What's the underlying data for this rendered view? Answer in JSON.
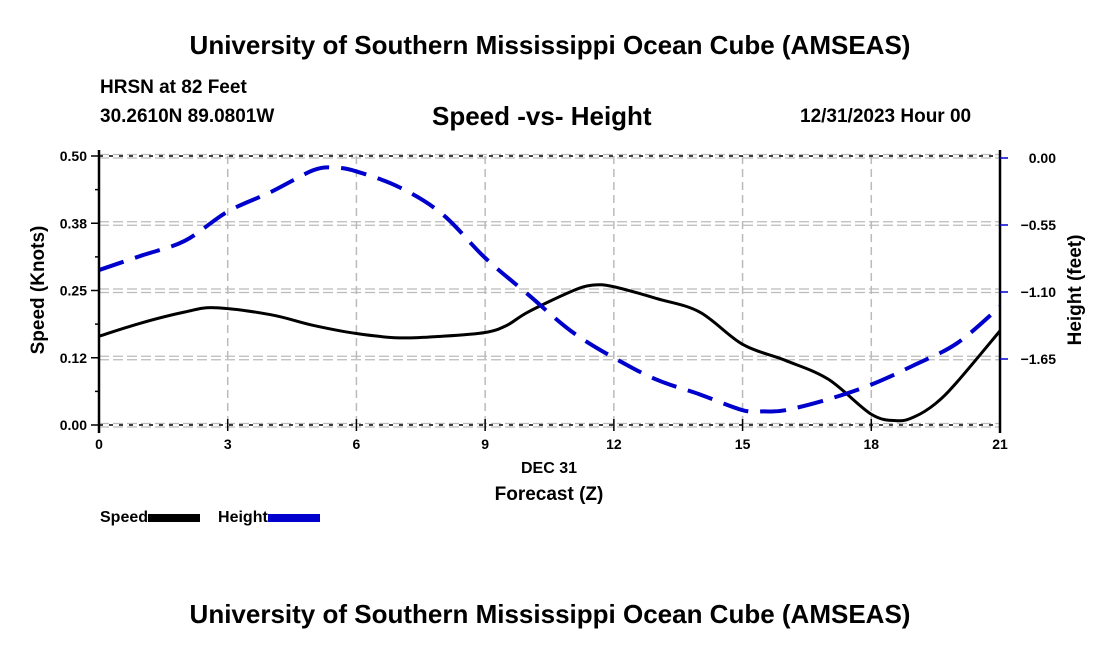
{
  "header": {
    "main_title": "University of Southern Mississippi Ocean Cube (AMSEAS)",
    "station": "HRSN at 82 Feet",
    "coords": "30.2610N  89.0801W",
    "subtitle": "Speed -vs- Height",
    "date": "12/31/2023 Hour 00"
  },
  "footer": {
    "title": "University of Southern Mississippi Ocean Cube (AMSEAS)"
  },
  "chart_data": {
    "type": "line",
    "title": "Speed -vs- Height",
    "xlabel": "Forecast (Z)",
    "xlabel_date": "DEC 31",
    "ylabel": "Speed (Knots)",
    "y2label": "Height (feet)",
    "xlim": [
      0,
      21
    ],
    "ylim": [
      0,
      0.5
    ],
    "y2lim": [
      -2.2,
      0
    ],
    "x_ticks": [
      0,
      3,
      6,
      9,
      12,
      15,
      18,
      21
    ],
    "x_tick_labels": [
      "0",
      "3",
      "6",
      "9",
      "12",
      "15",
      "18",
      "21"
    ],
    "y_ticks": [
      0,
      0.125,
      0.25,
      0.375,
      0.5
    ],
    "y_tick_labels": [
      "0.00",
      "0.12",
      "0.25",
      "0.38",
      "0.50"
    ],
    "y2_ticks": [
      0,
      -0.55,
      -1.1,
      -1.65
    ],
    "y2_tick_labels": [
      "0.00",
      "−0.55",
      "−1.10",
      "−1.65"
    ],
    "grid": true,
    "legend_position": "bottom-left",
    "series": [
      {
        "name": "Speed",
        "axis": "left",
        "color": "#000000",
        "style": "solid",
        "x": [
          0,
          1,
          2,
          2.7,
          4,
          5,
          6,
          7,
          8,
          9,
          9.5,
          10,
          11,
          11.5,
          12,
          13,
          14,
          15,
          16,
          17,
          18,
          18.6,
          19,
          19.5,
          20,
          21
        ],
        "values": [
          0.165,
          0.19,
          0.21,
          0.218,
          0.205,
          0.185,
          0.17,
          0.162,
          0.165,
          0.172,
          0.185,
          0.21,
          0.248,
          0.26,
          0.257,
          0.235,
          0.21,
          0.15,
          0.12,
          0.085,
          0.02,
          0.008,
          0.015,
          0.04,
          0.08,
          0.175
        ]
      },
      {
        "name": "Height",
        "axis": "right",
        "color": "#0000cc",
        "style": "dashed",
        "x": [
          0,
          1,
          2,
          3,
          4,
          5,
          5.5,
          6,
          7,
          8,
          9,
          10,
          11,
          12,
          13,
          14,
          15,
          15.5,
          16,
          17,
          18,
          19,
          20,
          21
        ],
        "values": [
          -0.92,
          -0.8,
          -0.68,
          -0.44,
          -0.28,
          -0.1,
          -0.08,
          -0.11,
          -0.24,
          -0.46,
          -0.82,
          -1.12,
          -1.42,
          -1.64,
          -1.82,
          -1.94,
          -2.07,
          -2.08,
          -2.07,
          -1.98,
          -1.86,
          -1.7,
          -1.52,
          -1.22
        ]
      }
    ]
  },
  "legend": {
    "speed_label": "Speed",
    "height_label": "Height",
    "speed_color": "#000000",
    "height_color": "#0000cc"
  }
}
